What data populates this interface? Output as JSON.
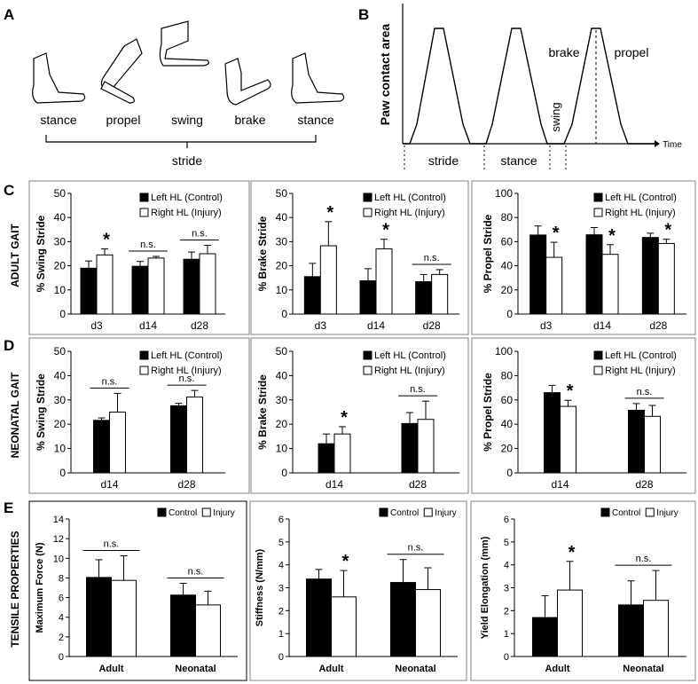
{
  "panel_a": {
    "letter": "A",
    "phases": [
      "stance",
      "propel",
      "swing",
      "brake",
      "stance"
    ],
    "brace_label": "stride"
  },
  "panel_b": {
    "letter": "B",
    "ylabel": "Paw contact area",
    "xlabel": "Time",
    "phase_labels": [
      "brake",
      "propel",
      "swing"
    ],
    "segment_labels": [
      "stride",
      "stance"
    ]
  },
  "row_labels": {
    "C": "C",
    "D": "D",
    "E": "E",
    "adult": "ADULT GAIT",
    "neonatal": "NEONATAL GAIT",
    "tensile": "TENSILE PROPERTIES"
  },
  "colors": {
    "left": "#000000",
    "right": "#ffffff",
    "stroke": "#000000",
    "frame": "#808080"
  },
  "chart_data": [
    {
      "id": "C1",
      "type": "bar",
      "ylabel": "% Swing Stride",
      "ylim": [
        0,
        50
      ],
      "yticks": [
        0,
        10,
        20,
        30,
        40,
        50
      ],
      "categories": [
        "d3",
        "d14",
        "d28"
      ],
      "legend": [
        "Left HL (Control)",
        "Right HL (Injury)"
      ],
      "series": [
        {
          "name": "Left HL (Control)",
          "values": [
            19,
            19.8,
            22.7
          ],
          "errors": [
            3,
            2,
            3
          ]
        },
        {
          "name": "Right HL (Injury)",
          "values": [
            24.5,
            23.2,
            25
          ],
          "errors": [
            2.5,
            0.7,
            3.5
          ]
        }
      ],
      "annotations": [
        "*",
        "n.s.",
        "n.s."
      ]
    },
    {
      "id": "C2",
      "type": "bar",
      "ylabel": "% Brake Stride",
      "ylim": [
        0,
        50
      ],
      "yticks": [
        0,
        10,
        20,
        30,
        40,
        50
      ],
      "categories": [
        "d3",
        "d14",
        "d28"
      ],
      "legend": [
        "Left HL (Control)",
        "Right HL (Injury)"
      ],
      "series": [
        {
          "name": "Left HL (Control)",
          "values": [
            15.5,
            13.8,
            13.4
          ],
          "errors": [
            5.5,
            5,
            3
          ]
        },
        {
          "name": "Right HL (Injury)",
          "values": [
            28.3,
            27,
            16.4
          ],
          "errors": [
            10,
            4,
            2
          ]
        }
      ],
      "annotations": [
        "*",
        "*",
        "n.s."
      ]
    },
    {
      "id": "C3",
      "type": "bar",
      "ylabel": "% Propel Stride",
      "ylim": [
        0,
        100
      ],
      "yticks": [
        0,
        20,
        40,
        60,
        80,
        100
      ],
      "categories": [
        "d3",
        "d14",
        "d28"
      ],
      "legend": [
        "Left HL (Control)",
        "Right HL (Injury)"
      ],
      "series": [
        {
          "name": "Left HL (Control)",
          "values": [
            65.5,
            65.7,
            63.5
          ],
          "errors": [
            7.5,
            6,
            3.5
          ]
        },
        {
          "name": "Right HL (Injury)",
          "values": [
            47,
            49.5,
            58.5
          ],
          "errors": [
            12.5,
            8,
            3.5
          ]
        }
      ],
      "annotations": [
        "*",
        "*",
        "*"
      ]
    },
    {
      "id": "D1",
      "type": "bar",
      "ylabel": "% Swing Stride",
      "ylim": [
        0,
        50
      ],
      "yticks": [
        0,
        10,
        20,
        30,
        40,
        50
      ],
      "categories": [
        "d14",
        "d28"
      ],
      "legend": [
        "Left HL (Control)",
        "Right HL (Injury)"
      ],
      "series": [
        {
          "name": "Left HL (Control)",
          "values": [
            21.6,
            27.6
          ],
          "errors": [
            1,
            1
          ]
        },
        {
          "name": "Right HL (Injury)",
          "values": [
            25,
            31.2
          ],
          "errors": [
            7.7,
            2.7
          ]
        }
      ],
      "annotations": [
        "n.s.",
        "n.s."
      ]
    },
    {
      "id": "D2",
      "type": "bar",
      "ylabel": "% Brake Stride",
      "ylim": [
        0,
        50
      ],
      "yticks": [
        0,
        10,
        20,
        30,
        40,
        50
      ],
      "categories": [
        "d14",
        "d28"
      ],
      "legend": [
        "Left HL (Control)",
        "Right HL (Injury)"
      ],
      "series": [
        {
          "name": "Left HL (Control)",
          "values": [
            12,
            20.3
          ],
          "errors": [
            4,
            4.5
          ]
        },
        {
          "name": "Right HL (Injury)",
          "values": [
            16,
            22
          ],
          "errors": [
            3,
            7.5
          ]
        }
      ],
      "annotations": [
        "*",
        "n.s."
      ]
    },
    {
      "id": "D3",
      "type": "bar",
      "ylabel": "% Propel Stride",
      "ylim": [
        0,
        100
      ],
      "yticks": [
        0,
        20,
        40,
        60,
        80,
        100
      ],
      "categories": [
        "d14",
        "d28"
      ],
      "legend": [
        "Left HL (Control)",
        "Right HL (Injury)"
      ],
      "series": [
        {
          "name": "Left HL (Control)",
          "values": [
            66,
            51.5
          ],
          "errors": [
            6,
            5.5
          ]
        },
        {
          "name": "Right HL (Injury)",
          "values": [
            54.7,
            46.5
          ],
          "errors": [
            5,
            9
          ]
        }
      ],
      "annotations": [
        "*",
        "n.s."
      ]
    },
    {
      "id": "E1",
      "type": "bar",
      "ylabel": "Maximum Force (N)",
      "ylim": [
        0,
        14
      ],
      "yticks": [
        0,
        2,
        4,
        6,
        8,
        10,
        12,
        14
      ],
      "categories": [
        "Adult",
        "Neonatal"
      ],
      "legend": [
        "Control",
        "Injury"
      ],
      "series": [
        {
          "name": "Control",
          "values": [
            8.05,
            6.25
          ],
          "errors": [
            1.8,
            1.2
          ]
        },
        {
          "name": "Injury",
          "values": [
            7.75,
            5.25
          ],
          "errors": [
            2.5,
            1.4
          ]
        }
      ],
      "annotations": [
        "n.s.",
        "n.s."
      ]
    },
    {
      "id": "E2",
      "type": "bar",
      "ylabel": "Stiffness (N/mm)",
      "ylim": [
        0,
        6
      ],
      "yticks": [
        0,
        1,
        2,
        3,
        4,
        5,
        6
      ],
      "categories": [
        "Adult",
        "Neonatal"
      ],
      "legend": [
        "Control",
        "Injury"
      ],
      "series": [
        {
          "name": "Control",
          "values": [
            3.38,
            3.23
          ],
          "errors": [
            0.42,
            1.0
          ]
        },
        {
          "name": "Injury",
          "values": [
            2.6,
            2.92
          ],
          "errors": [
            1.15,
            0.95
          ]
        }
      ],
      "annotations": [
        "*",
        "n.s."
      ]
    },
    {
      "id": "E3",
      "type": "bar",
      "ylabel": "Yield Elongation (mm)",
      "ylim": [
        0,
        6
      ],
      "yticks": [
        0,
        1,
        2,
        3,
        4,
        5,
        6
      ],
      "categories": [
        "Adult",
        "Neonatal"
      ],
      "legend": [
        "Control",
        "Injury"
      ],
      "series": [
        {
          "name": "Control",
          "values": [
            1.7,
            2.25
          ],
          "errors": [
            0.95,
            1.05
          ]
        },
        {
          "name": "Injury",
          "values": [
            2.9,
            2.45
          ],
          "errors": [
            1.25,
            1.3
          ]
        }
      ],
      "annotations": [
        "*",
        "n.s."
      ]
    }
  ]
}
